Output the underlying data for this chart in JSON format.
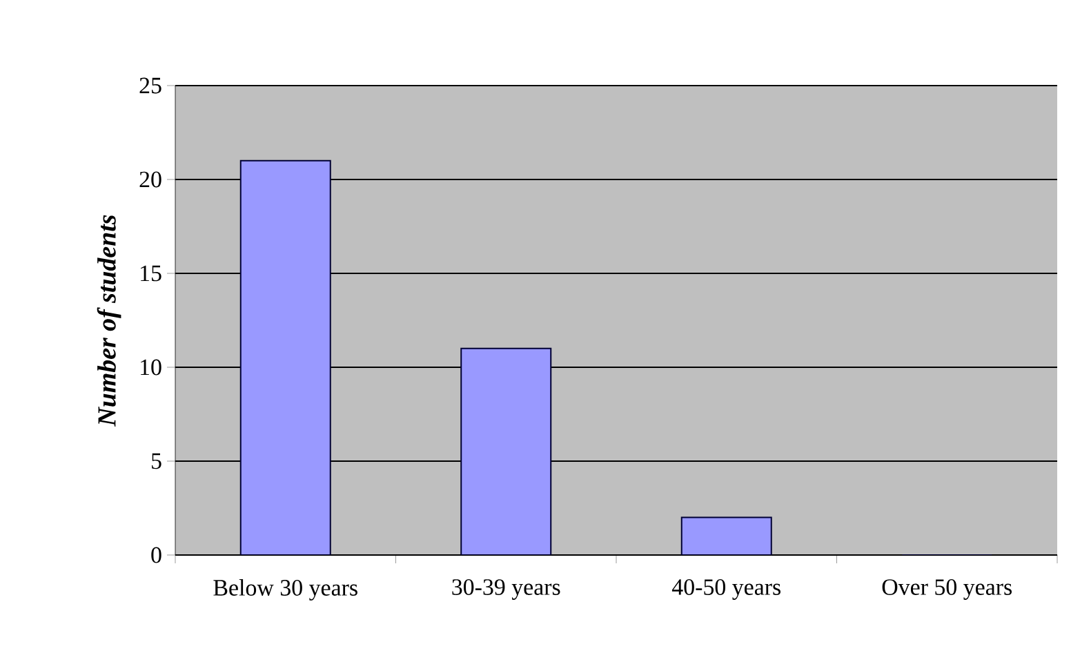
{
  "chart_data": {
    "type": "bar",
    "ylabel": "Number of students",
    "categories": [
      "Below 30 years",
      "30-39 years",
      "40-50 years",
      "Over 50 years"
    ],
    "values": [
      21,
      11,
      2,
      0
    ],
    "color": "#9999ff",
    "ylim": [
      0,
      25
    ],
    "yticks": [
      0,
      5,
      10,
      15,
      20,
      25
    ],
    "grid": "y"
  }
}
